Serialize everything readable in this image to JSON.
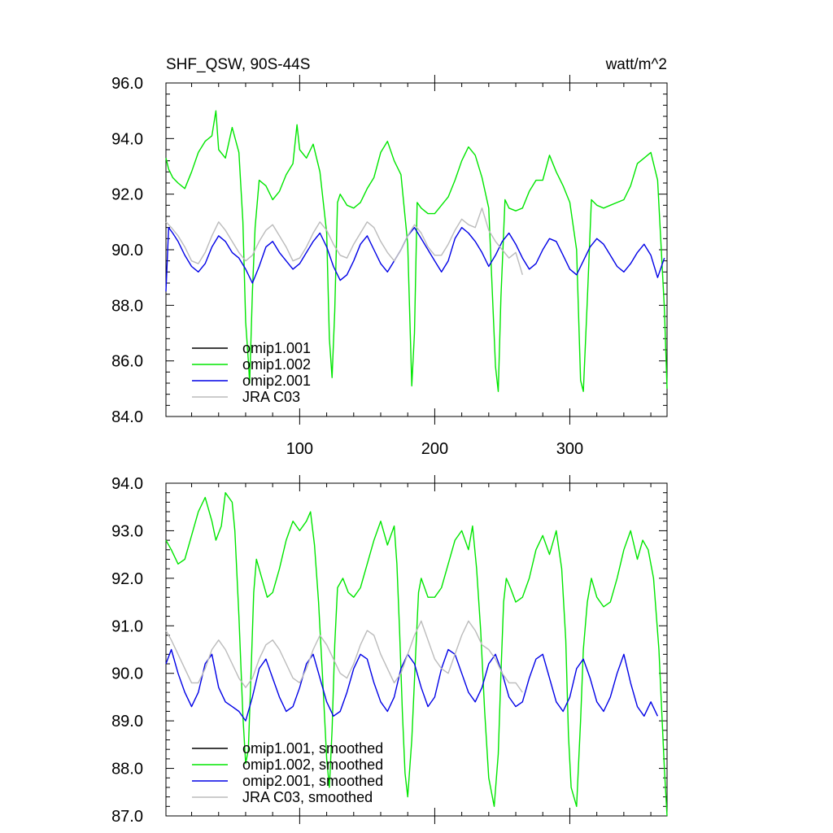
{
  "page": {
    "title": "SHF_QSW, 90S-44S",
    "units": "watt/m^2"
  },
  "chart_data": [
    {
      "type": "line",
      "title": "SHF_QSW, 90S-44S",
      "units": "watt/m^2",
      "xlabel": "",
      "ylabel": "",
      "xlim": [
        1,
        372
      ],
      "ylim": [
        84.0,
        96.0
      ],
      "yticks": [
        "84.0",
        "86.0",
        "88.0",
        "90.0",
        "92.0",
        "94.0",
        "96.0"
      ],
      "xticks": [
        "100",
        "200",
        "300"
      ],
      "grid": false,
      "legend_position": "bottom-left",
      "series": [
        {
          "name": "omip1.001",
          "color": "#000000",
          "x": [],
          "y": []
        },
        {
          "name": "omip1.002",
          "color": "#00e600",
          "x": [
            1,
            3,
            6,
            10,
            15,
            20,
            25,
            30,
            35,
            38,
            40,
            45,
            50,
            55,
            58,
            60,
            62,
            63,
            65,
            67,
            70,
            75,
            80,
            85,
            90,
            95,
            98,
            100,
            105,
            110,
            115,
            120,
            122,
            124,
            126,
            128,
            130,
            135,
            140,
            145,
            150,
            155,
            160,
            165,
            170,
            175,
            180,
            183,
            185,
            187,
            190,
            195,
            200,
            205,
            210,
            215,
            220,
            225,
            230,
            235,
            240,
            245,
            247,
            249,
            252,
            255,
            260,
            265,
            270,
            275,
            280,
            285,
            290,
            295,
            300,
            305,
            308,
            310,
            313,
            316,
            320,
            325,
            330,
            335,
            340,
            345,
            350,
            355,
            360,
            365,
            370,
            372
          ],
          "y": [
            93.3,
            92.9,
            92.6,
            92.4,
            92.2,
            92.8,
            93.5,
            93.9,
            94.1,
            95.0,
            93.6,
            93.3,
            94.4,
            93.5,
            91.0,
            87.4,
            86.0,
            85.2,
            88.5,
            90.8,
            92.5,
            92.3,
            91.8,
            92.1,
            92.7,
            93.1,
            94.5,
            93.6,
            93.3,
            93.8,
            92.8,
            90.6,
            86.8,
            85.4,
            87.8,
            91.7,
            92.0,
            91.6,
            91.5,
            91.7,
            92.2,
            92.6,
            93.5,
            93.9,
            93.2,
            92.7,
            90.2,
            85.1,
            87.0,
            91.7,
            91.5,
            91.3,
            91.3,
            91.6,
            91.9,
            92.5,
            93.2,
            93.7,
            93.4,
            92.6,
            91.5,
            85.8,
            84.9,
            88.3,
            91.8,
            91.5,
            91.4,
            91.5,
            92.1,
            92.5,
            92.5,
            93.4,
            92.8,
            92.3,
            91.7,
            90.0,
            85.3,
            84.9,
            88.2,
            91.8,
            91.6,
            91.5,
            91.6,
            91.7,
            91.8,
            92.3,
            93.1,
            93.3,
            93.5,
            92.5,
            87.9,
            85.0
          ]
        },
        {
          "name": "omip2.001",
          "color": "#0000e6",
          "x": [
            1,
            3,
            6,
            10,
            15,
            20,
            25,
            30,
            35,
            40,
            45,
            50,
            55,
            60,
            65,
            70,
            75,
            80,
            85,
            90,
            95,
            100,
            105,
            110,
            115,
            120,
            125,
            130,
            135,
            140,
            145,
            150,
            155,
            160,
            165,
            170,
            175,
            180,
            185,
            190,
            195,
            200,
            205,
            210,
            215,
            220,
            225,
            230,
            235,
            240,
            245,
            250,
            255,
            260,
            265,
            270,
            275,
            280,
            285,
            290,
            295,
            300,
            305,
            310,
            315,
            320,
            325,
            330,
            335,
            340,
            345,
            350,
            355,
            360,
            365,
            370
          ],
          "y": [
            88.5,
            90.8,
            90.6,
            90.3,
            89.8,
            89.4,
            89.2,
            89.5,
            90.1,
            90.5,
            90.3,
            89.9,
            89.7,
            89.3,
            88.8,
            89.4,
            90.1,
            90.3,
            89.9,
            89.6,
            89.3,
            89.5,
            89.9,
            90.3,
            90.6,
            90.1,
            89.4,
            88.9,
            89.1,
            89.6,
            90.2,
            90.5,
            90.0,
            89.5,
            89.2,
            89.6,
            90.0,
            90.5,
            90.8,
            90.4,
            90.0,
            89.6,
            89.2,
            89.6,
            90.4,
            90.8,
            90.6,
            90.3,
            89.9,
            89.4,
            89.8,
            90.3,
            90.6,
            90.2,
            89.7,
            89.3,
            89.5,
            90.0,
            90.4,
            90.3,
            89.8,
            89.3,
            89.1,
            89.6,
            90.1,
            90.4,
            90.2,
            89.8,
            89.4,
            89.2,
            89.5,
            89.9,
            90.2,
            89.8,
            89.0,
            89.7
          ]
        },
        {
          "name": "JRA C03",
          "color": "#bbbbbb",
          "x": [
            1,
            5,
            10,
            15,
            20,
            25,
            30,
            35,
            40,
            45,
            50,
            55,
            60,
            65,
            70,
            75,
            80,
            85,
            90,
            95,
            100,
            105,
            110,
            115,
            120,
            125,
            130,
            135,
            140,
            145,
            150,
            155,
            160,
            165,
            170,
            175,
            180,
            185,
            190,
            195,
            200,
            205,
            210,
            215,
            220,
            225,
            230,
            235,
            240,
            245,
            250,
            255,
            260,
            265
          ],
          "y": [
            91.0,
            90.8,
            90.5,
            90.1,
            89.6,
            89.5,
            89.9,
            90.5,
            91.0,
            90.7,
            90.3,
            89.9,
            89.6,
            89.8,
            90.3,
            90.7,
            90.9,
            90.5,
            90.1,
            89.6,
            89.7,
            90.1,
            90.6,
            91.0,
            90.7,
            90.2,
            89.8,
            89.7,
            90.2,
            90.6,
            91.0,
            90.8,
            90.3,
            89.9,
            89.6,
            90.0,
            90.5,
            90.9,
            90.6,
            90.1,
            89.8,
            89.8,
            90.2,
            90.7,
            91.1,
            90.9,
            90.8,
            91.5,
            90.7,
            90.3,
            90.0,
            89.7,
            89.9,
            89.1
          ]
        }
      ]
    },
    {
      "type": "line",
      "title": "",
      "xlabel": "",
      "ylabel": "",
      "xlim": [
        1,
        372
      ],
      "ylim": [
        87.0,
        94.0
      ],
      "yticks": [
        "87.0",
        "88.0",
        "89.0",
        "90.0",
        "91.0",
        "92.0",
        "93.0",
        "94.0"
      ],
      "xticks": [],
      "grid": false,
      "legend_position": "bottom-left",
      "series": [
        {
          "name": "omip1.001, smoothed",
          "color": "#000000",
          "x": [],
          "y": []
        },
        {
          "name": "omip1.002, smoothed",
          "color": "#00e600",
          "x": [
            1,
            5,
            10,
            15,
            20,
            25,
            30,
            35,
            38,
            42,
            45,
            50,
            52,
            55,
            58,
            60,
            62,
            64,
            66,
            68,
            72,
            76,
            80,
            85,
            90,
            95,
            100,
            105,
            108,
            111,
            114,
            117,
            120,
            122,
            124,
            126,
            128,
            132,
            136,
            140,
            145,
            150,
            155,
            160,
            165,
            170,
            172,
            174,
            176,
            178,
            180,
            183,
            186,
            188,
            190,
            195,
            200,
            205,
            210,
            215,
            220,
            225,
            228,
            231,
            234,
            237,
            240,
            244,
            247,
            249,
            251,
            253,
            256,
            260,
            265,
            270,
            275,
            280,
            285,
            290,
            294,
            297,
            299,
            301,
            305,
            308,
            310,
            313,
            316,
            320,
            325,
            330,
            335,
            340,
            345,
            350,
            354,
            358,
            362,
            366,
            370,
            372
          ],
          "y": [
            92.8,
            92.6,
            92.3,
            92.4,
            92.9,
            93.4,
            93.7,
            93.2,
            92.8,
            93.1,
            93.8,
            93.6,
            93.0,
            91.2,
            89.1,
            88.1,
            88.4,
            90.0,
            91.7,
            92.4,
            92.0,
            91.6,
            91.7,
            92.2,
            92.8,
            93.2,
            93.0,
            93.2,
            93.4,
            92.7,
            91.5,
            89.9,
            88.2,
            87.6,
            88.8,
            90.6,
            91.8,
            92.0,
            91.7,
            91.6,
            91.8,
            92.3,
            92.8,
            93.2,
            92.7,
            93.1,
            92.3,
            90.9,
            89.2,
            87.9,
            87.4,
            88.6,
            90.5,
            91.7,
            92.0,
            91.6,
            91.6,
            91.8,
            92.3,
            92.8,
            93.0,
            92.6,
            93.1,
            92.2,
            90.9,
            89.2,
            87.8,
            87.2,
            88.3,
            90.0,
            91.5,
            92.0,
            91.8,
            91.5,
            91.6,
            92.0,
            92.6,
            92.9,
            92.5,
            93.0,
            92.2,
            90.7,
            88.7,
            87.6,
            87.2,
            89.0,
            90.5,
            91.5,
            92.0,
            91.6,
            91.4,
            91.5,
            92.0,
            92.6,
            93.0,
            92.4,
            92.8,
            92.6,
            92.0,
            90.5,
            88.0,
            87.0
          ]
        },
        {
          "name": "omip2.001, smoothed",
          "color": "#0000e6",
          "x": [
            1,
            5,
            10,
            15,
            20,
            25,
            30,
            35,
            40,
            45,
            50,
            55,
            60,
            65,
            70,
            75,
            80,
            85,
            90,
            95,
            100,
            105,
            110,
            115,
            120,
            125,
            130,
            135,
            140,
            145,
            150,
            155,
            160,
            165,
            170,
            175,
            180,
            185,
            190,
            195,
            200,
            205,
            210,
            215,
            220,
            225,
            230,
            235,
            240,
            245,
            250,
            255,
            260,
            265,
            270,
            275,
            280,
            285,
            290,
            295,
            300,
            305,
            310,
            315,
            320,
            325,
            330,
            335,
            340,
            345,
            350,
            355,
            360,
            365
          ],
          "y": [
            90.2,
            90.5,
            90.0,
            89.6,
            89.3,
            89.6,
            90.2,
            90.4,
            89.7,
            89.4,
            89.3,
            89.2,
            89.0,
            89.5,
            90.1,
            90.3,
            89.9,
            89.5,
            89.2,
            89.3,
            89.7,
            90.2,
            90.4,
            89.9,
            89.4,
            89.1,
            89.2,
            89.6,
            90.1,
            90.4,
            90.3,
            89.8,
            89.4,
            89.2,
            89.5,
            90.1,
            90.4,
            90.2,
            89.7,
            89.3,
            89.5,
            90.1,
            90.5,
            90.4,
            90.0,
            89.6,
            89.4,
            89.7,
            90.2,
            90.4,
            90.0,
            89.5,
            89.3,
            89.4,
            89.9,
            90.3,
            90.4,
            89.9,
            89.4,
            89.2,
            89.5,
            90.1,
            90.3,
            89.9,
            89.4,
            89.2,
            89.5,
            90.0,
            90.4,
            89.8,
            89.3,
            89.1,
            89.4,
            89.1
          ]
        },
        {
          "name": "JRA C03, smoothed",
          "color": "#bbbbbb",
          "x": [
            1,
            5,
            10,
            15,
            20,
            25,
            30,
            35,
            40,
            45,
            50,
            55,
            60,
            65,
            70,
            75,
            80,
            85,
            90,
            95,
            100,
            105,
            110,
            115,
            120,
            125,
            130,
            135,
            140,
            145,
            150,
            155,
            160,
            165,
            170,
            175,
            180,
            185,
            190,
            195,
            200,
            205,
            210,
            215,
            220,
            225,
            230,
            235,
            240,
            245,
            250,
            255,
            260,
            265
          ],
          "y": [
            90.9,
            90.7,
            90.4,
            90.1,
            89.8,
            89.8,
            90.1,
            90.5,
            90.7,
            90.5,
            90.2,
            89.9,
            89.7,
            89.9,
            90.3,
            90.6,
            90.7,
            90.5,
            90.2,
            89.9,
            89.8,
            90.1,
            90.5,
            90.8,
            90.6,
            90.3,
            90.0,
            89.9,
            90.2,
            90.6,
            90.9,
            90.8,
            90.4,
            90.1,
            89.8,
            90.0,
            90.4,
            90.8,
            91.1,
            90.7,
            90.3,
            90.1,
            90.0,
            90.4,
            90.8,
            91.1,
            90.9,
            90.6,
            90.5,
            90.3,
            90.0,
            89.8,
            89.8,
            89.6
          ]
        }
      ]
    }
  ]
}
